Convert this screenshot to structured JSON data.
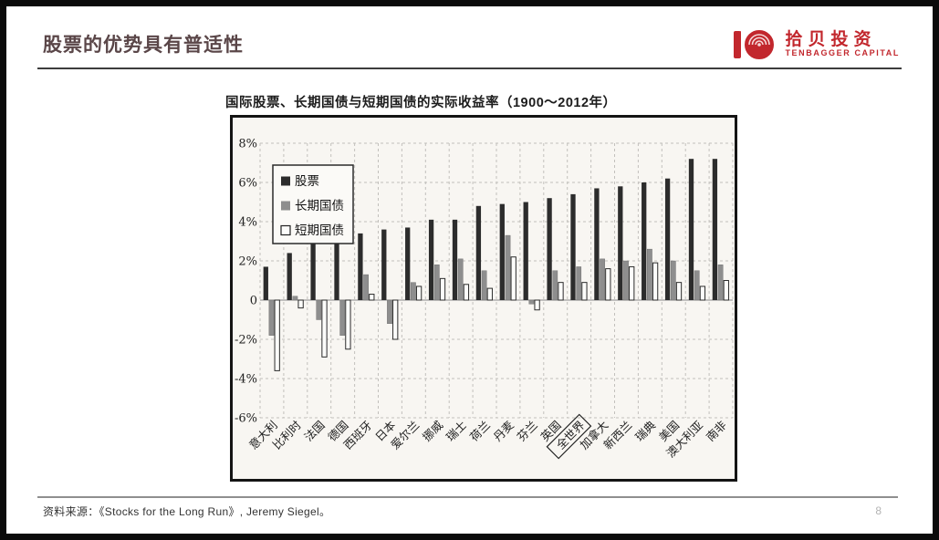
{
  "slide": {
    "title": "股票的优势具有普适性",
    "page_number": "8",
    "source_note": "资料来源：《Stocks for the Long Run》, Jeremy Siegel。"
  },
  "logo": {
    "name_cn": "拾贝投资",
    "name_en": "TENBAGGER CAPITAL",
    "brand_color": "#c2272d"
  },
  "chart_data": {
    "type": "bar",
    "title": "国际股票、长期国债与短期国债的实际收益率（1900～2012年）",
    "categories": [
      "意大利",
      "比利时",
      "法国",
      "德国",
      "西班牙",
      "日本",
      "爱尔兰",
      "挪威",
      "瑞士",
      "荷兰",
      "丹麦",
      "芬兰",
      "英国",
      "全世界",
      "加拿大",
      "新西兰",
      "瑞典",
      "美国",
      "澳大利亚",
      "南非"
    ],
    "highlighted_category": "全世界",
    "series": [
      {
        "name": "股票",
        "color": "#2c2c2c",
        "values": [
          1.7,
          2.4,
          2.9,
          3.0,
          3.4,
          3.6,
          3.7,
          4.1,
          4.1,
          4.8,
          4.9,
          5.0,
          5.2,
          5.4,
          5.7,
          5.8,
          6.0,
          6.2,
          7.2,
          7.2
        ]
      },
      {
        "name": "长期国债",
        "color": "#8e8e8e",
        "values": [
          -1.8,
          0.2,
          -1.0,
          -1.8,
          1.3,
          -1.2,
          0.9,
          1.8,
          2.1,
          1.5,
          3.3,
          -0.2,
          1.5,
          1.7,
          2.1,
          2.0,
          2.6,
          2.0,
          1.5,
          1.8
        ]
      },
      {
        "name": "短期国债",
        "color": "#fcfcfa",
        "values": [
          -3.6,
          -0.4,
          -2.9,
          -2.5,
          0.3,
          -2.0,
          0.7,
          1.1,
          0.8,
          0.6,
          2.2,
          -0.5,
          0.9,
          0.9,
          1.6,
          1.7,
          1.9,
          0.9,
          0.7,
          1.0
        ]
      }
    ],
    "ylim": [
      -6,
      8
    ],
    "ytick_values": [
      8,
      6,
      4,
      2,
      0,
      -2,
      -4,
      -6
    ],
    "ytick_labels": [
      "8%",
      "6%",
      "4%",
      "2%",
      "0",
      "-2%",
      "-4%",
      "-6%"
    ],
    "grid": true,
    "legend_position": "upper-left",
    "colors": {
      "plot_bg": "#f8f6f2",
      "gridline": "#c2c0bc",
      "axis_text": "#1e1e1e",
      "zero_line": "#8a8a8a"
    }
  }
}
